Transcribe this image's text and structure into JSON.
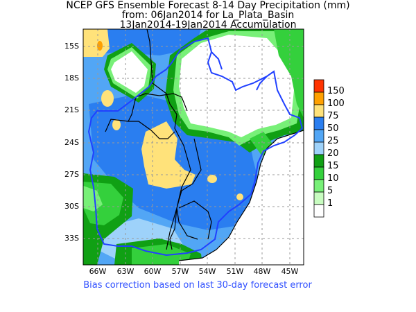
{
  "title": {
    "line1": "NCEP GFS Ensemble Forecast 8-14 Day Precipitation (mm)",
    "line2": "from: 06Jan2014   for La_Plata_Basin",
    "line3": "13Jan2014-19Jan2014 Accumulation"
  },
  "axes": {
    "lat_ticks": [
      "15S",
      "18S",
      "21S",
      "24S",
      "27S",
      "30S",
      "33S"
    ],
    "lon_ticks": [
      "66W",
      "63W",
      "60W",
      "57W",
      "54W",
      "51W",
      "48W",
      "45W"
    ]
  },
  "legend": {
    "labels": [
      "150",
      "100",
      "75",
      "50",
      "25",
      "20",
      "15",
      "10",
      "5",
      "1"
    ],
    "colors": [
      "#ff3300",
      "#ffa000",
      "#ffe27a",
      "#2a7ef0",
      "#52a6f5",
      "#9ed2fa",
      "#10a014",
      "#34d03c",
      "#78f078",
      "#c8fcc0",
      "#ffffff"
    ]
  },
  "footer": "Bias correction based on last 30-day forecast error"
}
